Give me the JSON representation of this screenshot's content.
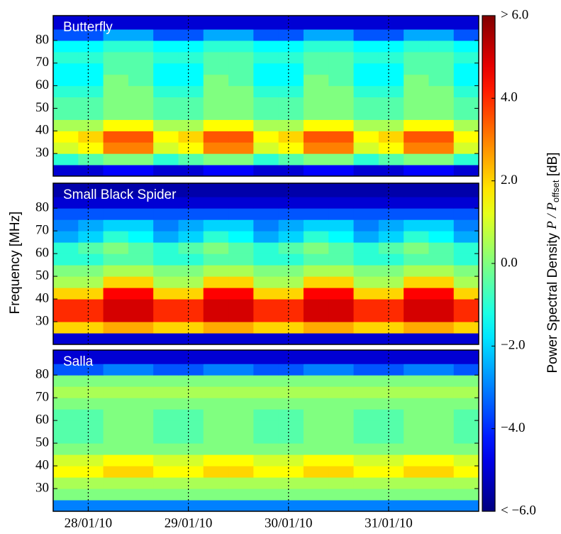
{
  "chart_data": [
    {
      "type": "heatmap",
      "title": "Butterfly",
      "colormap": "jet",
      "xlim": [
        27.65,
        31.9
      ],
      "ylim": [
        20,
        91
      ],
      "yticks": [
        30,
        40,
        50,
        60,
        70,
        80
      ],
      "grid": true,
      "x_bins": [
        27.65,
        27.9,
        28.15,
        28.4,
        28.65,
        28.9,
        29.15,
        29.4,
        29.65,
        29.9,
        30.15,
        30.4,
        30.65,
        30.9,
        31.15,
        31.4,
        31.65,
        31.9
      ],
      "y_bins": [
        20,
        25,
        30,
        35,
        40,
        45,
        50,
        55,
        60,
        65,
        70,
        75,
        80,
        85,
        91
      ],
      "z": [
        [
          -5,
          -5,
          -4.5,
          -4.5,
          -5,
          -5,
          -4.5,
          -4.5,
          -5,
          -5,
          -4.5,
          -4.5,
          -5,
          -5,
          -4.5,
          -4.5,
          -5
        ],
        [
          -1,
          -0.5,
          0,
          0,
          -1,
          -0.5,
          0,
          0,
          -1,
          -0.5,
          0,
          0,
          -1,
          -0.5,
          0,
          0,
          -1
        ],
        [
          1,
          1.5,
          3,
          3,
          1,
          1.5,
          3,
          3,
          1,
          1.5,
          3,
          3,
          1,
          1.5,
          3,
          3,
          1
        ],
        [
          1.5,
          2,
          3.5,
          3.5,
          1.5,
          2,
          3.5,
          3.5,
          1.5,
          2,
          3.5,
          3.5,
          1.5,
          2,
          3.5,
          3.5,
          1.5
        ],
        [
          0.5,
          0.5,
          1.5,
          1.5,
          0.5,
          0.5,
          1.5,
          1.5,
          0.5,
          0.5,
          1.5,
          1.5,
          0.5,
          0.5,
          1.5,
          1.5,
          0.5
        ],
        [
          -0.5,
          -0.5,
          0,
          0,
          -0.5,
          -0.5,
          0,
          0,
          -0.5,
          -0.5,
          0,
          0,
          -0.5,
          -0.5,
          0,
          0,
          -0.5
        ],
        [
          -0.5,
          -0.5,
          0,
          0,
          -0.5,
          -0.5,
          0,
          0,
          -0.5,
          -0.5,
          0,
          0,
          -0.5,
          -0.5,
          0,
          0,
          -0.5
        ],
        [
          -1,
          -1,
          0,
          0,
          -1,
          -1,
          0,
          0,
          -1,
          -1,
          0,
          0,
          -1,
          -1,
          0,
          0,
          -1
        ],
        [
          -1.5,
          -1.5,
          0,
          -0.5,
          -1.5,
          -1.5,
          0,
          -0.5,
          -1.5,
          -1.5,
          0,
          -0.5,
          -1.5,
          -1.5,
          0,
          -0.5,
          -1.5
        ],
        [
          -1.5,
          -1.5,
          -0.5,
          -0.5,
          -1.5,
          -1.5,
          -0.5,
          -0.5,
          -1.5,
          -1.5,
          -0.5,
          -0.5,
          -1.5,
          -1.5,
          -0.5,
          -0.5,
          -1.5
        ],
        [
          -1,
          -1,
          -0.5,
          -0.5,
          -1,
          -1,
          -0.5,
          -0.5,
          -1,
          -1,
          -0.5,
          -0.5,
          -1,
          -1,
          -0.5,
          -0.5,
          -1
        ],
        [
          -1.5,
          -1.5,
          -1,
          -1,
          -1.5,
          -1.5,
          -1,
          -1,
          -1.5,
          -1.5,
          -1,
          -1,
          -1.5,
          -1.5,
          -1,
          -1,
          -1.5
        ],
        [
          -3.5,
          -3.5,
          -2.5,
          -2.5,
          -3.5,
          -3.5,
          -2.5,
          -2.5,
          -3.5,
          -3.5,
          -2.5,
          -2.5,
          -3.5,
          -3.5,
          -2.5,
          -2.5,
          -3.5
        ],
        [
          -5,
          -5,
          -5,
          -5,
          -5,
          -5,
          -5,
          -5,
          -5,
          -5,
          -5,
          -5,
          -5,
          -5,
          -5,
          -5,
          -5
        ]
      ]
    },
    {
      "type": "heatmap",
      "title": "Small Black Spider",
      "ylabel": "Frequency [MHz]",
      "colormap": "jet",
      "xlim": [
        27.65,
        31.9
      ],
      "ylim": [
        20,
        91
      ],
      "yticks": [
        30,
        40,
        50,
        60,
        70,
        80
      ],
      "grid": true,
      "x_bins": [
        27.65,
        27.9,
        28.15,
        28.4,
        28.65,
        28.9,
        29.15,
        29.4,
        29.65,
        29.9,
        30.15,
        30.4,
        30.65,
        30.9,
        31.15,
        31.4,
        31.65,
        31.9
      ],
      "y_bins": [
        20,
        25,
        30,
        35,
        40,
        45,
        50,
        55,
        60,
        65,
        70,
        75,
        80,
        85,
        91
      ],
      "z": [
        [
          -5,
          -5,
          -5,
          -5,
          -5,
          -5,
          -5,
          -5,
          -5,
          -5,
          -5,
          -5,
          -5,
          -5,
          -5,
          -5,
          -5
        ],
        [
          2,
          2,
          2.5,
          2.5,
          2,
          2,
          2.5,
          2.5,
          2,
          2,
          2.5,
          2.5,
          2,
          2,
          2.5,
          2.5,
          2
        ],
        [
          4,
          4,
          5,
          5,
          4,
          4,
          5,
          5,
          4,
          4,
          5,
          5,
          4,
          4,
          5,
          5,
          4
        ],
        [
          4,
          4,
          5,
          5,
          4,
          4,
          5,
          5,
          4,
          4,
          5,
          5,
          4,
          4,
          5,
          5,
          4
        ],
        [
          2,
          2,
          4.5,
          4.5,
          2,
          2,
          4.5,
          4.5,
          2,
          2,
          4.5,
          4.5,
          2,
          2,
          4.5,
          4.5,
          2
        ],
        [
          0.5,
          0.5,
          2,
          2,
          0.5,
          0.5,
          2,
          2,
          0.5,
          0.5,
          2,
          2,
          0.5,
          0.5,
          2,
          2,
          0.5
        ],
        [
          0,
          0,
          0.5,
          0.5,
          0,
          0,
          0.5,
          0.5,
          0,
          0,
          0.5,
          0.5,
          0,
          0,
          0.5,
          0.5,
          0
        ],
        [
          -1,
          -1,
          -0.5,
          -0.5,
          -1,
          -1,
          -0.5,
          -0.5,
          -1,
          -1,
          -0.5,
          -0.5,
          -1,
          -1,
          -0.5,
          -0.5,
          -1
        ],
        [
          -1,
          -0.5,
          0,
          -0.5,
          -1,
          -0.5,
          0,
          -0.5,
          -1,
          -0.5,
          0,
          -0.5,
          -1,
          -0.5,
          0,
          -0.5,
          -1
        ],
        [
          -2.5,
          -2,
          -1,
          -1.5,
          -2.5,
          -2,
          -1,
          -1.5,
          -2.5,
          -2,
          -1,
          -1.5,
          -2.5,
          -2,
          -1,
          -1.5,
          -2.5
        ],
        [
          -3,
          -2.5,
          -2,
          -2,
          -3,
          -2.5,
          -2,
          -2,
          -3,
          -2.5,
          -2,
          -2,
          -3,
          -2.5,
          -2,
          -2,
          -3
        ],
        [
          -3.5,
          -3.5,
          -3.5,
          -3.5,
          -3.5,
          -3.5,
          -3.5,
          -3.5,
          -3.5,
          -3.5,
          -3.5,
          -3.5,
          -3.5,
          -3.5,
          -3.5,
          -3.5,
          -3.5
        ],
        [
          -5,
          -5,
          -5,
          -5,
          -5,
          -5,
          -5,
          -5,
          -5,
          -5,
          -5,
          -5,
          -5,
          -5,
          -5,
          -5,
          -5
        ],
        [
          -5.5,
          -5.5,
          -5.5,
          -5.5,
          -5.5,
          -5.5,
          -5.5,
          -5.5,
          -5.5,
          -5.5,
          -5.5,
          -5.5,
          -5.5,
          -5.5,
          -5.5,
          -5.5,
          -5.5
        ]
      ]
    },
    {
      "type": "heatmap",
      "title": "Salla",
      "colormap": "jet",
      "xlim": [
        27.65,
        31.9
      ],
      "ylim": [
        20,
        91
      ],
      "yticks": [
        30,
        40,
        50,
        60,
        70,
        80
      ],
      "grid": true,
      "xticks": [
        {
          "value": 28,
          "label": "28/01/10"
        },
        {
          "value": 29,
          "label": "29/01/10"
        },
        {
          "value": 30,
          "label": "30/01/10"
        },
        {
          "value": 31,
          "label": "31/01/10"
        }
      ],
      "x_bins": [
        27.65,
        27.9,
        28.15,
        28.4,
        28.65,
        28.9,
        29.15,
        29.4,
        29.65,
        29.9,
        30.15,
        30.4,
        30.65,
        30.9,
        31.15,
        31.4,
        31.65,
        31.9
      ],
      "y_bins": [
        20,
        25,
        30,
        35,
        40,
        45,
        50,
        55,
        60,
        65,
        70,
        75,
        80,
        85,
        91
      ],
      "z": [
        [
          -3,
          -3,
          -3,
          -3,
          -3,
          -3,
          -3,
          -3,
          -3,
          -3,
          -3,
          -3,
          -3,
          -3,
          -3,
          -3,
          -3
        ],
        [
          0,
          0,
          0,
          0,
          0,
          0,
          0,
          0,
          0,
          0,
          0,
          0,
          0,
          0,
          0,
          0,
          0
        ],
        [
          0.5,
          0.5,
          0.5,
          0.5,
          0.5,
          0.5,
          0.5,
          0.5,
          0.5,
          0.5,
          0.5,
          0.5,
          0.5,
          0.5,
          0.5,
          0.5,
          0.5
        ],
        [
          1.5,
          1.5,
          2,
          2,
          1.5,
          1.5,
          2,
          2,
          1.5,
          1.5,
          2,
          2,
          1.5,
          1.5,
          2,
          2,
          1.5
        ],
        [
          1,
          1,
          1.5,
          1.5,
          1,
          1,
          1.5,
          1.5,
          1,
          1,
          1.5,
          1.5,
          1,
          1,
          1.5,
          1.5,
          1
        ],
        [
          0,
          0,
          0,
          0,
          0,
          0,
          0,
          0,
          0,
          0,
          0,
          0,
          0,
          0,
          0,
          0,
          0
        ],
        [
          -0.5,
          -0.5,
          0,
          0,
          -0.5,
          -0.5,
          0,
          0,
          -0.5,
          -0.5,
          0,
          0,
          -0.5,
          -0.5,
          0,
          0,
          -0.5
        ],
        [
          -0.5,
          -0.5,
          0,
          0,
          -0.5,
          -0.5,
          0,
          0,
          -0.5,
          -0.5,
          0,
          0,
          -0.5,
          -0.5,
          0,
          0,
          -0.5
        ],
        [
          -0.5,
          -0.5,
          0,
          0,
          -0.5,
          -0.5,
          0,
          0,
          -0.5,
          -0.5,
          0,
          0,
          -0.5,
          -0.5,
          0,
          0,
          -0.5
        ],
        [
          0,
          0,
          0,
          0,
          0,
          0,
          0,
          0,
          0,
          0,
          0,
          0,
          0,
          0,
          0,
          0,
          0
        ],
        [
          0.5,
          0.5,
          0.5,
          0.5,
          0.5,
          0.5,
          0.5,
          0.5,
          0.5,
          0.5,
          0.5,
          0.5,
          0.5,
          0.5,
          0.5,
          0.5,
          0.5
        ],
        [
          0,
          0,
          0,
          0,
          0,
          0,
          0,
          0,
          0,
          0,
          0,
          0,
          0,
          0,
          0,
          0,
          0
        ],
        [
          -3.5,
          -3.5,
          -3,
          -3,
          -3.5,
          -3.5,
          -3,
          -3,
          -3.5,
          -3.5,
          -3,
          -3,
          -3.5,
          -3.5,
          -3,
          -3,
          -3.5
        ],
        [
          -5,
          -5,
          -5,
          -5,
          -5,
          -5,
          -5,
          -5,
          -5,
          -5,
          -5,
          -5,
          -5,
          -5,
          -5,
          -5,
          -5
        ]
      ]
    }
  ],
  "colorbar": {
    "clim": [
      -6,
      6
    ],
    "ticks": [
      {
        "value": -6,
        "label": "< −6.0"
      },
      {
        "value": -4,
        "label": "−4.0"
      },
      {
        "value": -2,
        "label": "−2.0"
      },
      {
        "value": 0,
        "label": "0.0"
      },
      {
        "value": 2,
        "label": "2.0"
      },
      {
        "value": 4,
        "label": "4.0"
      },
      {
        "value": 6,
        "label": "> 6.0"
      }
    ],
    "label": "Power Spectral Density",
    "label_math": "P / P",
    "label_sub": "offset",
    "label_unit": "[dB]"
  }
}
